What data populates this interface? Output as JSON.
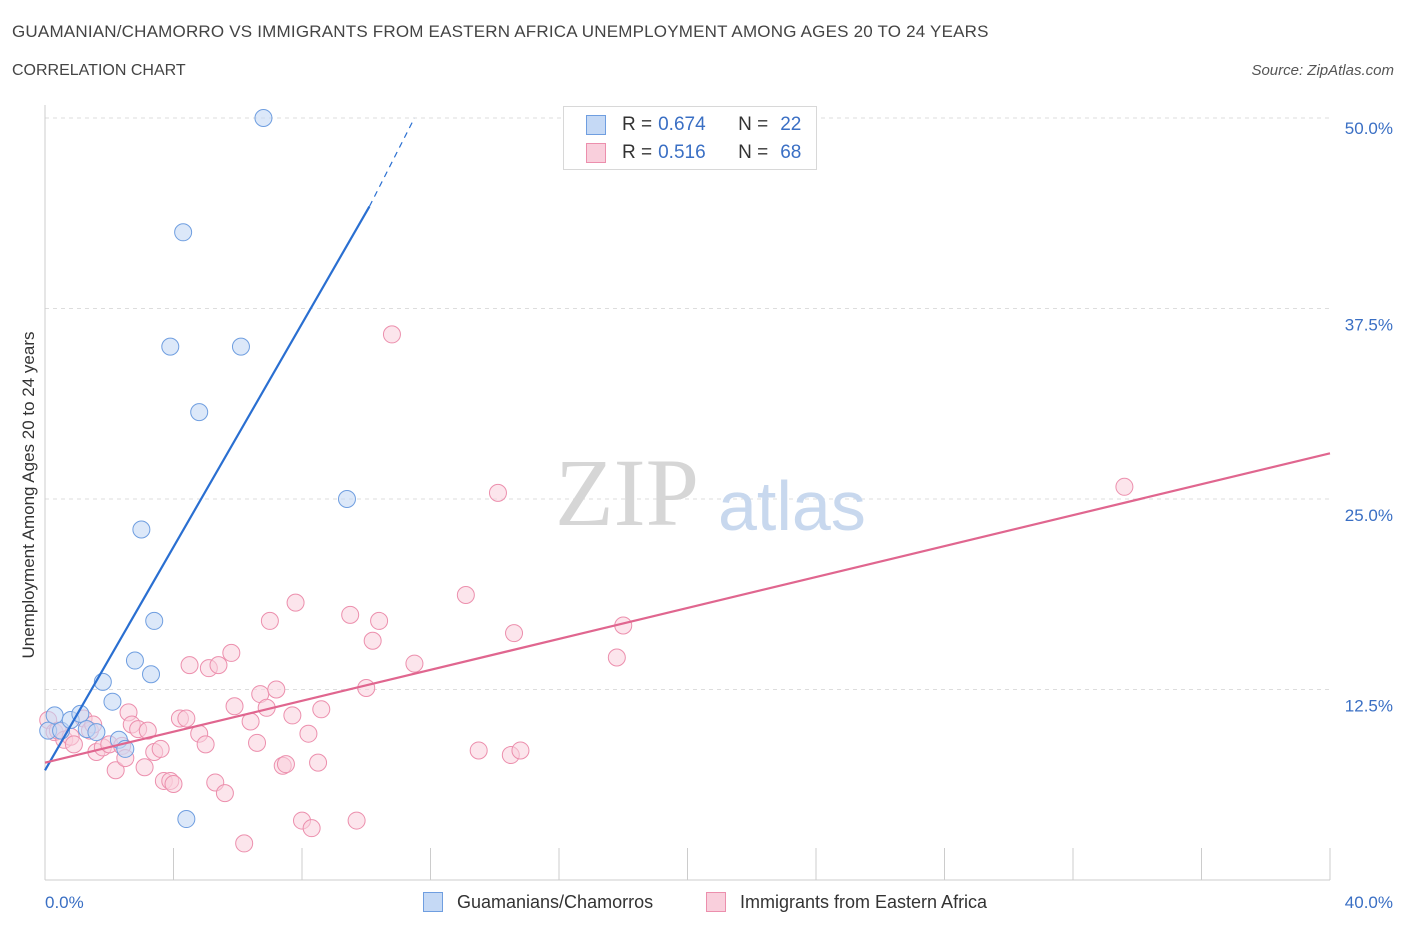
{
  "header": {
    "title": "GUAMANIAN/CHAMORRO VS IMMIGRANTS FROM EASTERN AFRICA UNEMPLOYMENT AMONG AGES 20 TO 24 YEARS",
    "subtitle": "CORRELATION CHART",
    "source": "Source: ZipAtlas.com"
  },
  "legend": {
    "rows": [
      {
        "r_label": "R =",
        "r_value": "0.674",
        "n_label": "N =",
        "n_value": "22"
      },
      {
        "r_label": "R =",
        "r_value": "0.516",
        "n_label": "N =",
        "n_value": "68"
      }
    ],
    "bottom": [
      "Guamanians/Chamorros",
      "Immigrants from Eastern Africa"
    ]
  },
  "watermark": {
    "zip": "ZIP",
    "atlas": "atlas"
  },
  "colors": {
    "blue_fill": "#c5d9f5",
    "blue_stroke": "#6f9ee0",
    "blue_line": "#2a6fd1",
    "pink_fill": "#f9cfdc",
    "pink_stroke": "#ec8fad",
    "pink_line": "#e0668f",
    "tick_label": "#3a6fc4",
    "grid": "#dddddd"
  },
  "chart_data": {
    "type": "scatter",
    "title": "GUAMANIAN/CHAMORRO VS IMMIGRANTS FROM EASTERN AFRICA UNEMPLOYMENT AMONG AGES 20 TO 24 YEARS",
    "xlabel": "",
    "ylabel": "Unemployment Among Ages 20 to 24 years",
    "xlim": [
      0,
      40
    ],
    "ylim": [
      0,
      52
    ],
    "x_tick_labels": [
      "0.0%",
      "40.0%"
    ],
    "y_ticks": [
      12.5,
      25.0,
      37.5,
      50.0
    ],
    "y_tick_labels": [
      "12.5%",
      "25.0%",
      "37.5%",
      "50.0%"
    ],
    "grid": true,
    "series": [
      {
        "name": "Guamanians/Chamorros",
        "color": "#6f9ee0",
        "points": [
          [
            0.1,
            9.8
          ],
          [
            0.3,
            10.8
          ],
          [
            0.5,
            9.8
          ],
          [
            0.8,
            10.5
          ],
          [
            1.1,
            10.9
          ],
          [
            1.3,
            9.9
          ],
          [
            1.6,
            9.7
          ],
          [
            1.8,
            13.0
          ],
          [
            2.1,
            11.7
          ],
          [
            2.3,
            9.2
          ],
          [
            2.5,
            8.6
          ],
          [
            2.8,
            14.4
          ],
          [
            3.0,
            23.0
          ],
          [
            3.3,
            13.5
          ],
          [
            3.4,
            17.0
          ],
          [
            3.9,
            35.0
          ],
          [
            4.3,
            42.5
          ],
          [
            4.4,
            4.0
          ],
          [
            4.8,
            30.7
          ],
          [
            6.1,
            35.0
          ],
          [
            6.8,
            50.0
          ],
          [
            9.4,
            25.0
          ]
        ],
        "trend": {
          "x0": 0.0,
          "y0": 7.2,
          "x1": 10.1,
          "y1": 44.2,
          "dash_x1": 11.5,
          "dash_y1": 50.0
        }
      },
      {
        "name": "Immigrants from Eastern Africa",
        "color": "#ec8fad",
        "points": [
          [
            0.1,
            10.5
          ],
          [
            0.3,
            9.7
          ],
          [
            0.4,
            9.8
          ],
          [
            0.6,
            9.2
          ],
          [
            0.8,
            9.4
          ],
          [
            0.9,
            8.9
          ],
          [
            1.2,
            10.6
          ],
          [
            1.4,
            9.8
          ],
          [
            1.5,
            10.2
          ],
          [
            1.6,
            8.4
          ],
          [
            1.8,
            8.7
          ],
          [
            2.0,
            8.9
          ],
          [
            2.2,
            7.2
          ],
          [
            2.4,
            8.8
          ],
          [
            2.5,
            8.0
          ],
          [
            2.6,
            11.0
          ],
          [
            2.7,
            10.2
          ],
          [
            2.9,
            9.9
          ],
          [
            3.1,
            7.4
          ],
          [
            3.2,
            9.8
          ],
          [
            3.4,
            8.4
          ],
          [
            3.6,
            8.6
          ],
          [
            3.7,
            6.5
          ],
          [
            3.9,
            6.5
          ],
          [
            4.0,
            6.3
          ],
          [
            4.2,
            10.6
          ],
          [
            4.4,
            10.6
          ],
          [
            4.5,
            14.1
          ],
          [
            4.8,
            9.6
          ],
          [
            5.0,
            8.9
          ],
          [
            5.1,
            13.9
          ],
          [
            5.3,
            6.4
          ],
          [
            5.4,
            14.1
          ],
          [
            5.6,
            5.7
          ],
          [
            5.8,
            14.9
          ],
          [
            5.9,
            11.4
          ],
          [
            6.2,
            2.4
          ],
          [
            6.4,
            10.4
          ],
          [
            6.6,
            9.0
          ],
          [
            6.7,
            12.2
          ],
          [
            6.9,
            11.3
          ],
          [
            7.0,
            17.0
          ],
          [
            7.2,
            12.5
          ],
          [
            7.4,
            7.5
          ],
          [
            7.5,
            7.6
          ],
          [
            7.7,
            10.8
          ],
          [
            7.8,
            18.2
          ],
          [
            8.0,
            3.9
          ],
          [
            8.2,
            9.6
          ],
          [
            8.3,
            3.4
          ],
          [
            8.5,
            7.7
          ],
          [
            8.6,
            11.2
          ],
          [
            9.5,
            17.4
          ],
          [
            9.7,
            3.9
          ],
          [
            10.0,
            12.6
          ],
          [
            10.2,
            15.7
          ],
          [
            10.4,
            17.0
          ],
          [
            10.8,
            35.8
          ],
          [
            11.5,
            14.2
          ],
          [
            13.1,
            18.7
          ],
          [
            13.5,
            8.5
          ],
          [
            14.1,
            25.4
          ],
          [
            14.5,
            8.2
          ],
          [
            14.6,
            16.2
          ],
          [
            14.8,
            8.5
          ],
          [
            17.8,
            14.6
          ],
          [
            18.0,
            16.7
          ],
          [
            33.6,
            25.8
          ]
        ],
        "trend": {
          "x0": 0.0,
          "y0": 7.7,
          "x1": 40.0,
          "y1": 28.0
        }
      }
    ]
  }
}
